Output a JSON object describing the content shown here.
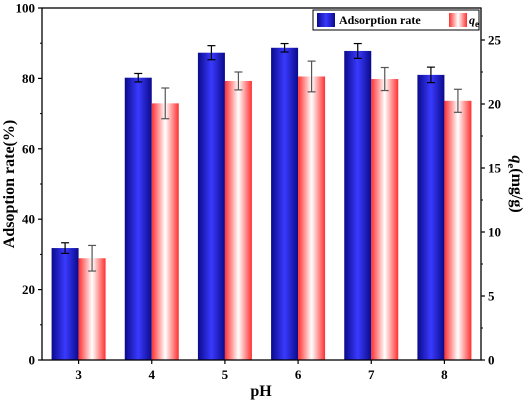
{
  "chart_data": {
    "type": "bar",
    "x_label": "pH",
    "y_left_label": "Adsoption rate(%)",
    "y_right_label_base": "q",
    "y_right_label_sub": "e",
    "y_right_label_unit": "(mg/g)",
    "categories": [
      "3",
      "4",
      "5",
      "6",
      "7",
      "8"
    ],
    "y_left_lim": [
      0,
      100
    ],
    "y_left_ticks": [
      "0",
      "20",
      "40",
      "60",
      "80",
      "100"
    ],
    "y_right_lim": [
      0,
      27.5
    ],
    "y_right_ticks": [
      "0",
      "5",
      "10",
      "15",
      "20",
      "25"
    ],
    "legend_position": "top-right",
    "series": [
      {
        "name": "Adsorption rate",
        "axis": "left",
        "values": [
          31.8,
          80.2,
          87.3,
          88.7,
          87.8,
          81.0
        ],
        "errors": [
          1.5,
          1.2,
          2.0,
          1.2,
          2.1,
          2.2
        ],
        "colors": [
          "#0a0a8c",
          "#3a3aff",
          "#0a0a8c"
        ]
      },
      {
        "name_base": "q",
        "name_sub": "e",
        "axis": "right",
        "values": [
          7.95,
          20.05,
          21.8,
          22.15,
          21.95,
          20.25
        ],
        "errors": [
          1.0,
          1.2,
          0.7,
          1.2,
          0.9,
          0.9
        ],
        "colors": [
          "#ff3030",
          "#ffffff",
          "#ff3030"
        ]
      }
    ]
  }
}
